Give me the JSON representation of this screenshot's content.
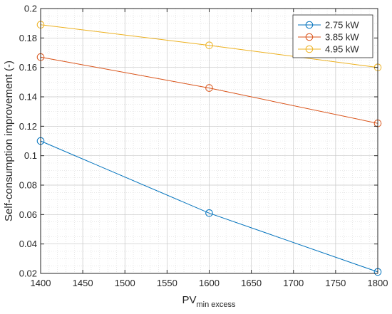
{
  "chart_data": {
    "type": "line",
    "title": "",
    "xlabel": "PV",
    "xlabel_subscript": "min excess",
    "ylabel": "Self-consumption improvement (-)",
    "x": [
      1400,
      1600,
      1800
    ],
    "xlim": [
      1400,
      1800
    ],
    "ylim": [
      0.02,
      0.2
    ],
    "xticks": [
      1400,
      1450,
      1500,
      1550,
      1600,
      1650,
      1700,
      1750,
      1800
    ],
    "yticks": [
      0.02,
      0.04,
      0.06,
      0.08,
      0.1,
      0.12,
      0.14,
      0.16,
      0.18,
      0.2
    ],
    "ytick_labels": [
      "0.02",
      "0.04",
      "0.06",
      "0.08",
      "0.1",
      "0.12",
      "0.14",
      "0.16",
      "0.18",
      "0.2"
    ],
    "grid": true,
    "minor_grid": true,
    "legend_position": "top-right",
    "series": [
      {
        "name": "2.75 kW",
        "color": "#0072BD",
        "values": [
          0.11,
          0.061,
          0.021
        ]
      },
      {
        "name": "3.85 kW",
        "color": "#D95319",
        "values": [
          0.167,
          0.146,
          0.122
        ]
      },
      {
        "name": "4.95 kW",
        "color": "#EDB120",
        "values": [
          0.189,
          0.175,
          0.16
        ]
      }
    ],
    "marker": "circle-open"
  }
}
